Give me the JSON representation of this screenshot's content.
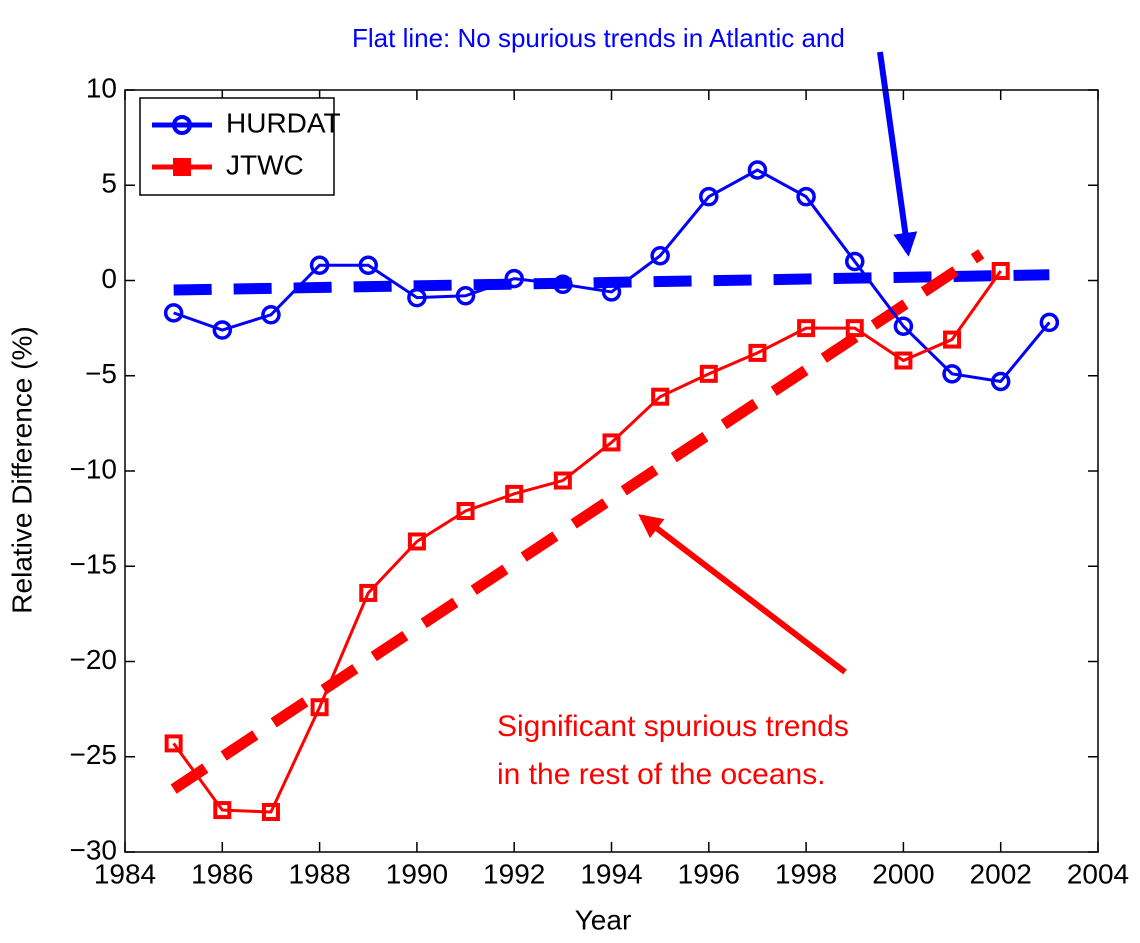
{
  "chart_data": {
    "type": "line",
    "xlabel": "Year",
    "ylabel": "Relative Difference (%)",
    "xlim": [
      1984,
      2004
    ],
    "xticks": [
      1984,
      1986,
      1988,
      1990,
      1992,
      1994,
      1996,
      1998,
      2000,
      2002,
      2004
    ],
    "ylim": [
      -30,
      10
    ],
    "yticks": [
      {
        "value": -30,
        "label": "−30"
      },
      {
        "value": -25,
        "label": "−25"
      },
      {
        "value": -20,
        "label": "−20"
      },
      {
        "value": -15,
        "label": "−15"
      },
      {
        "value": -10,
        "label": "−10"
      },
      {
        "value": -5,
        "label": "−5"
      },
      0,
      5,
      10
    ],
    "legend": "upper left",
    "series": [
      {
        "name": "HURDAT",
        "color": "#0000ff",
        "marker": "circle",
        "x": [
          1985,
          1986,
          1987,
          1988,
          1989,
          1990,
          1991,
          1992,
          1993,
          1994,
          1995,
          1996,
          1997,
          1998,
          1999,
          2000,
          2001,
          2002,
          2003
        ],
        "values": [
          -1.7,
          -2.6,
          -1.8,
          0.8,
          0.8,
          -0.9,
          -0.8,
          0.1,
          -0.2,
          -0.6,
          1.3,
          4.4,
          5.8,
          4.4,
          1.0,
          -2.4,
          -4.9,
          -5.3,
          -2.2
        ]
      },
      {
        "name": "JTWC",
        "color": "#ff0000",
        "marker": "square",
        "x": [
          1985,
          1986,
          1987,
          1988,
          1989,
          1990,
          1991,
          1992,
          1993,
          1994,
          1995,
          1996,
          1997,
          1998,
          1999,
          2000,
          2001,
          2002
        ],
        "values": [
          -24.3,
          -27.8,
          -27.9,
          -22.4,
          -16.4,
          -13.7,
          -12.1,
          -11.2,
          -10.5,
          -8.5,
          -6.1,
          -4.9,
          -3.8,
          -2.5,
          -2.5,
          -4.2,
          -3.1,
          0.5
        ]
      }
    ],
    "trend_lines": [
      {
        "color": "#0000ff",
        "x": [
          1985,
          2003
        ],
        "values": [
          -0.5,
          0.3
        ]
      },
      {
        "color": "#ff0000",
        "x": [
          1985,
          2001.6
        ],
        "values": [
          -26.7,
          1.4
        ]
      }
    ],
    "annotations": [
      {
        "text": "Flat line: No spurious trends in Atlantic and",
        "color": "#0000ff"
      },
      {
        "text": "Significant spurious trends",
        "color": "#ff0000"
      },
      {
        "text": "in the rest of the oceans.",
        "color": "#ff0000"
      }
    ]
  }
}
